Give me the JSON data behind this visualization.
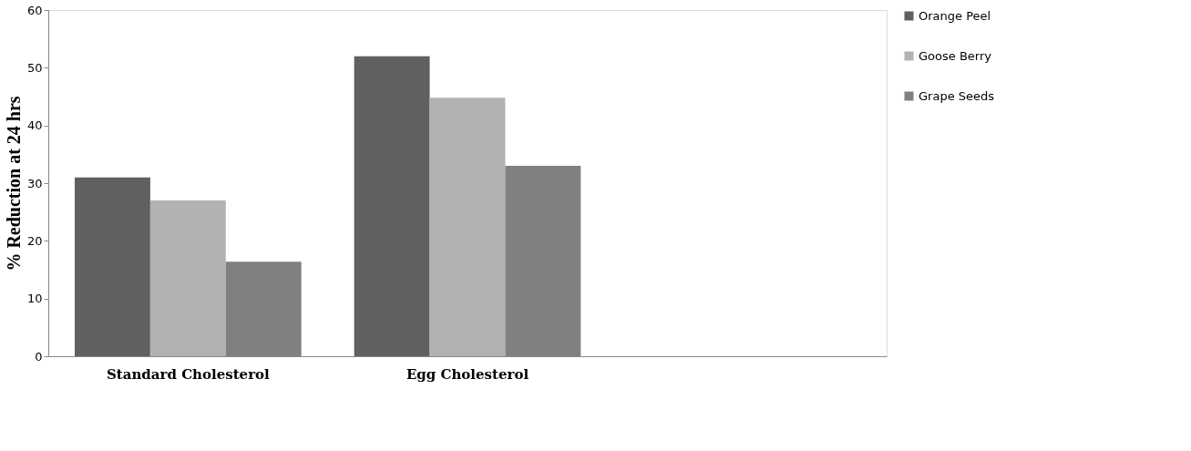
{
  "chart_data": {
    "type": "bar",
    "ylabel": "% Reduction at 24 hrs",
    "categories": [
      "Standard Cholesterol",
      "Egg Cholesterol",
      null
    ],
    "series": [
      {
        "name": "Orange Peel",
        "color": "#606060",
        "values": [
          31,
          52,
          null
        ]
      },
      {
        "name": "Goose Berry",
        "color": "#b2b2b2",
        "values": [
          27,
          44.8,
          null
        ]
      },
      {
        "name": "Grape Seeds",
        "color": "#808080",
        "values": [
          16.4,
          33,
          null
        ]
      }
    ],
    "ylim": [
      0,
      60
    ],
    "yticks": [
      0,
      10,
      20,
      30,
      40,
      50,
      60
    ],
    "grid": false,
    "legend": "right"
  }
}
